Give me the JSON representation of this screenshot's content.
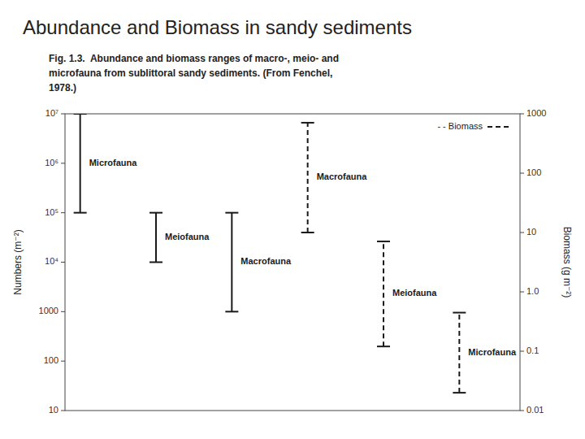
{
  "chart_data": {
    "type": "range_bar",
    "title": "Abundance and Biomass in sandy sediments",
    "subtitle": [
      "Fig. 1.3.  Abundance and biomass ranges of macro-, meio- and",
      "microfauna from sublittoral sandy sediments. (From Fenchel,",
      "1978.)"
    ],
    "ylabel": "Numbers (m⁻²)",
    "y2label": "Biomass (g m⁻²)",
    "log": "y",
    "grid": false,
    "legend": "upper right",
    "tick_labels": "y",
    "ylim": [
      10,
      10000000
    ],
    "yticks": [
      10,
      100,
      1000,
      {
        "value": 10000,
        "label": "10⁴"
      },
      {
        "value": 100000,
        "label": "10⁵"
      },
      {
        "value": 1000000,
        "label": "10⁶"
      },
      {
        "value": 10000000,
        "label": "10⁷"
      }
    ],
    "y2lim": [
      0.01,
      1000
    ],
    "y2ticks": [
      0.01,
      0.1,
      {
        "value": 1,
        "label": "1.0"
      },
      10,
      100,
      1000
    ],
    "series": [
      {
        "axis": "y",
        "color": "#1a1a1a",
        "line_style": "solid",
        "categories": [
          "Microfauna",
          "Meiofauna",
          "Macrofauna"
        ],
        "low": [
          100000,
          10000,
          1000
        ],
        "high": [
          10000000,
          100000,
          100000
        ]
      },
      {
        "name": "- - Biomass",
        "axis": "y2",
        "color": "#1a1a1a",
        "line_style": "dashed",
        "categories": [
          "Macrofauna",
          "Meiofauna",
          "Microfauna"
        ],
        "low": [
          10,
          0.12022644346174129,
          0.0199526231496888
        ],
        "high": [
          707.9457843841379,
          7.079457843841379,
          0.44668359215096315
        ]
      }
    ]
  }
}
